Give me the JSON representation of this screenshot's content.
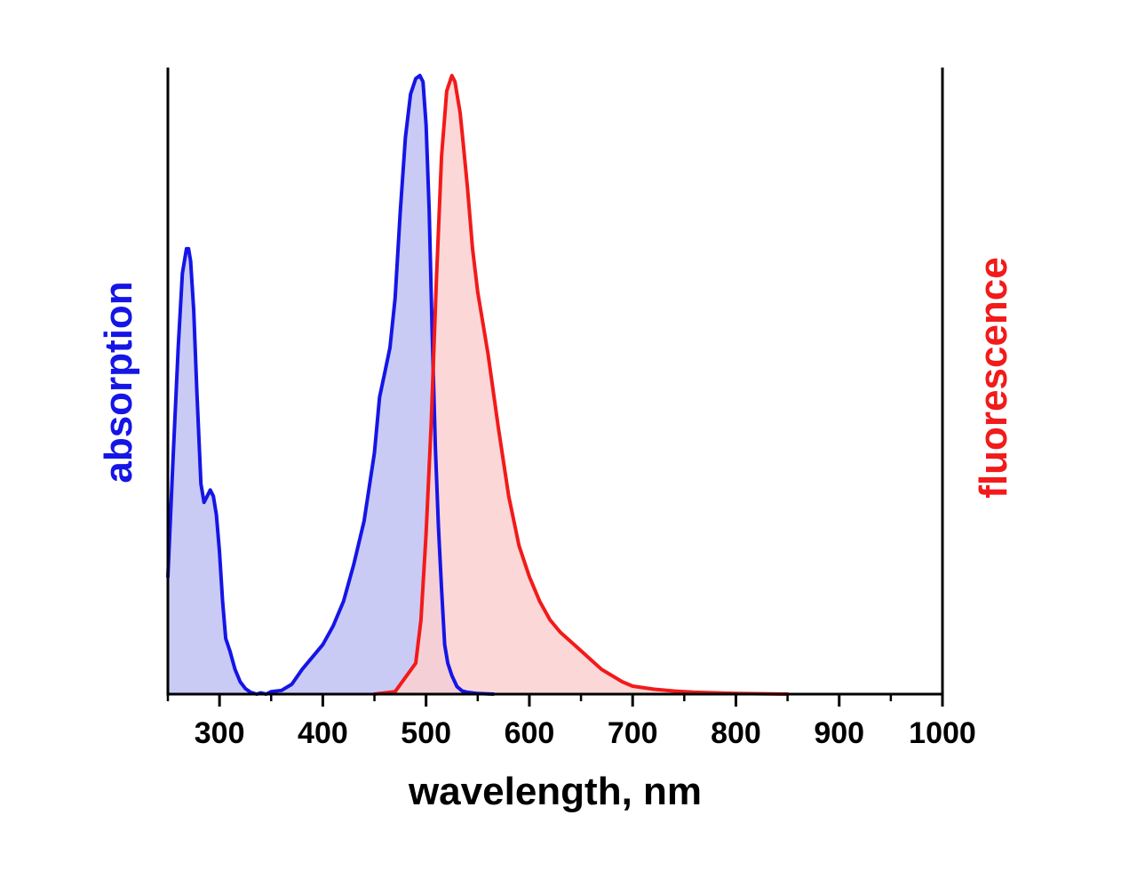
{
  "chart_data": {
    "type": "area",
    "xlabel": "wavelength, nm",
    "ylabel_left": "absorption",
    "ylabel_right": "fluorescence",
    "xlim": [
      250,
      1000
    ],
    "ylim": [
      0,
      1
    ],
    "x_ticks": [
      300,
      400,
      500,
      600,
      700,
      800,
      900,
      1000
    ],
    "y_ticks_shown": false,
    "grid": false,
    "colors": {
      "absorption_line": "#1515e6",
      "absorption_fill": "#c9cbf5",
      "fluorescence_line": "#f21a1a",
      "fluorescence_fill": "#fcd0d0",
      "axis": "#000000"
    },
    "series": [
      {
        "id": "absorption",
        "x": [
          250,
          255,
          260,
          264,
          268,
          270,
          272,
          275,
          278,
          282,
          285,
          288,
          291,
          294,
          297,
          300,
          303,
          306,
          310,
          315,
          320,
          325,
          330,
          336,
          340,
          345,
          350,
          360,
          370,
          380,
          390,
          400,
          410,
          420,
          430,
          440,
          450,
          455,
          460,
          465,
          470,
          475,
          480,
          485,
          490,
          494,
          497,
          500,
          503,
          506,
          509,
          512,
          515,
          518,
          521,
          525,
          530,
          535,
          540,
          550,
          565
        ],
        "y": [
          0.19,
          0.38,
          0.56,
          0.68,
          0.72,
          0.72,
          0.7,
          0.62,
          0.49,
          0.34,
          0.31,
          0.32,
          0.33,
          0.32,
          0.29,
          0.23,
          0.15,
          0.09,
          0.07,
          0.04,
          0.02,
          0.009,
          0.003,
          0.0,
          0.002,
          0.0,
          0.004,
          0.006,
          0.016,
          0.04,
          0.06,
          0.08,
          0.11,
          0.15,
          0.21,
          0.28,
          0.39,
          0.48,
          0.52,
          0.56,
          0.64,
          0.78,
          0.9,
          0.97,
          0.995,
          1.0,
          0.99,
          0.92,
          0.78,
          0.58,
          0.4,
          0.27,
          0.17,
          0.08,
          0.05,
          0.03,
          0.012,
          0.005,
          0.003,
          0.001,
          0.0
        ]
      },
      {
        "id": "fluorescence",
        "x": [
          450,
          470,
          490,
          495,
          500,
          505,
          510,
          515,
          520,
          525,
          528,
          530,
          533,
          536,
          540,
          545,
          550,
          560,
          570,
          580,
          590,
          600,
          610,
          620,
          630,
          640,
          650,
          660,
          670,
          680,
          690,
          700,
          720,
          740,
          760,
          800,
          850
        ],
        "y": [
          0.0,
          0.004,
          0.05,
          0.12,
          0.26,
          0.44,
          0.67,
          0.87,
          0.975,
          1.0,
          0.99,
          0.97,
          0.94,
          0.89,
          0.82,
          0.72,
          0.65,
          0.55,
          0.43,
          0.32,
          0.24,
          0.19,
          0.15,
          0.12,
          0.1,
          0.085,
          0.07,
          0.055,
          0.04,
          0.03,
          0.02,
          0.013,
          0.008,
          0.005,
          0.003,
          0.001,
          0.0
        ]
      }
    ]
  }
}
